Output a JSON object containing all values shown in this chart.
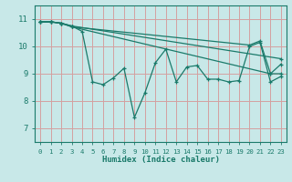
{
  "background_color": "#c8e8e8",
  "grid_color": "#d4a0a0",
  "line_color": "#1a7a6a",
  "xlabel": "Humidex (Indice chaleur)",
  "xlim": [
    -0.5,
    23.5
  ],
  "ylim": [
    6.5,
    11.5
  ],
  "yticks": [
    7,
    8,
    9,
    10,
    11
  ],
  "xticks": [
    0,
    1,
    2,
    3,
    4,
    5,
    6,
    7,
    8,
    9,
    10,
    11,
    12,
    13,
    14,
    15,
    16,
    17,
    18,
    19,
    20,
    21,
    22,
    23
  ],
  "lines": [
    {
      "x": [
        0,
        1,
        2,
        3,
        4,
        5,
        6,
        7,
        8,
        9,
        10,
        11,
        12,
        13,
        14,
        15,
        16,
        17,
        18,
        19,
        20,
        21,
        22,
        23
      ],
      "y": [
        10.9,
        10.9,
        10.85,
        10.75,
        10.55,
        8.7,
        8.6,
        8.85,
        9.2,
        7.4,
        8.3,
        9.4,
        9.9,
        8.7,
        9.25,
        9.3,
        8.8,
        8.8,
        8.7,
        8.75,
        10.0,
        10.15,
        8.7,
        8.9
      ]
    },
    {
      "x": [
        0,
        1,
        2,
        3,
        23
      ],
      "y": [
        10.9,
        10.9,
        10.85,
        10.75,
        9.55
      ]
    },
    {
      "x": [
        0,
        1,
        2,
        3,
        22,
        23
      ],
      "y": [
        10.9,
        10.9,
        10.85,
        10.72,
        9.0,
        9.0
      ]
    },
    {
      "x": [
        0,
        1,
        2,
        3,
        20,
        21,
        22,
        23
      ],
      "y": [
        10.9,
        10.9,
        10.85,
        10.72,
        10.05,
        10.2,
        9.0,
        9.35
      ]
    }
  ]
}
